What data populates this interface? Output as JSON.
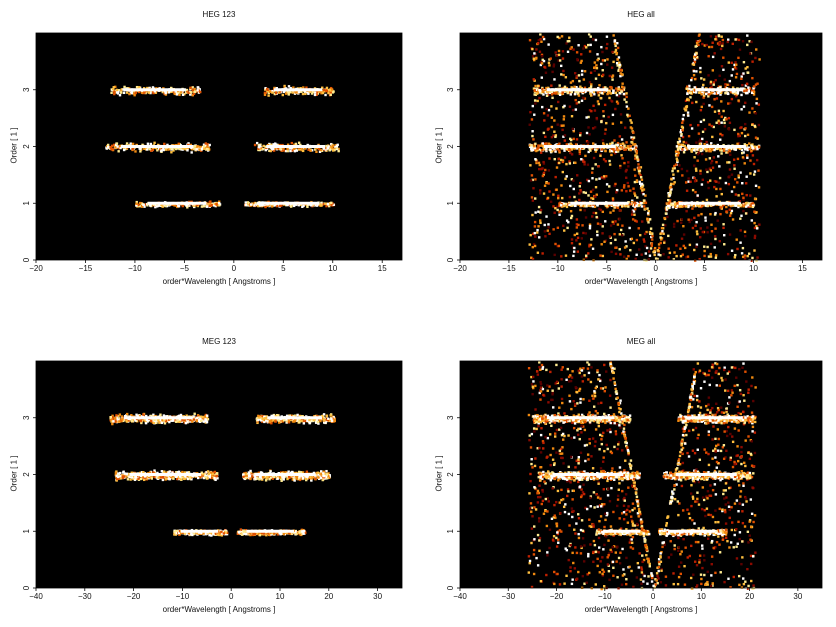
{
  "chart_data": [
    {
      "type": "heatmap",
      "title": "HEG 123",
      "xlabel": "order*Wavelength [ Angstroms ]",
      "ylabel": "Order [ 1 ]",
      "xlim": [
        -20,
        17
      ],
      "ylim": [
        0,
        4
      ],
      "xticks": [
        -20,
        -15,
        -10,
        -5,
        0,
        5,
        10,
        15
      ],
      "yticks": [
        0,
        1,
        2,
        3
      ],
      "colormap": "hot",
      "background": "#000000",
      "bands": [
        {
          "order": 3,
          "x_ranges": [
            [
              -12.5,
              -3.5
            ],
            [
              3,
              10
            ]
          ]
        },
        {
          "order": 2,
          "x_ranges": [
            [
              -13,
              -2.5
            ],
            [
              2,
              10.5
            ]
          ]
        },
        {
          "order": 1,
          "x_ranges": [
            [
              -10,
              -1.5
            ],
            [
              1,
              10
            ]
          ]
        }
      ],
      "fans": false
    },
    {
      "type": "heatmap",
      "title": "HEG all",
      "xlabel": "order*Wavelength [ Angstroms ]",
      "ylabel": "Order [ 1 ]",
      "xlim": [
        -20,
        17
      ],
      "ylim": [
        0,
        4
      ],
      "xticks": [
        -20,
        -15,
        -10,
        -5,
        0,
        5,
        10,
        15
      ],
      "yticks": [
        0,
        1,
        2,
        3
      ],
      "colormap": "hot",
      "background": "#000000",
      "bands": [
        {
          "order": 3,
          "x_ranges": [
            [
              -12.5,
              -3.5
            ],
            [
              3,
              10
            ]
          ]
        },
        {
          "order": 2,
          "x_ranges": [
            [
              -13,
              -2.5
            ],
            [
              2,
              10.5
            ]
          ]
        },
        {
          "order": 1,
          "x_ranges": [
            [
              -10,
              -1.5
            ],
            [
              1,
              10
            ]
          ]
        }
      ],
      "fans": true,
      "fan_x_extent": [
        -13,
        10.5
      ]
    },
    {
      "type": "heatmap",
      "title": "MEG 123",
      "xlabel": "order*Wavelength [ Angstroms ]",
      "ylabel": "Order [ 1 ]",
      "xlim": [
        -40,
        35
      ],
      "ylim": [
        0,
        4
      ],
      "xticks": [
        -40,
        -30,
        -20,
        -10,
        0,
        10,
        20,
        30
      ],
      "yticks": [
        0,
        1,
        2,
        3
      ],
      "colormap": "hot",
      "background": "#000000",
      "bands": [
        {
          "order": 3,
          "x_ranges": [
            [
              -25,
              -5
            ],
            [
              5,
              21
            ]
          ]
        },
        {
          "order": 2,
          "x_ranges": [
            [
              -24,
              -3
            ],
            [
              2,
              20
            ]
          ]
        },
        {
          "order": 1,
          "x_ranges": [
            [
              -12,
              -1
            ],
            [
              1,
              15
            ]
          ]
        }
      ],
      "fans": false
    },
    {
      "type": "heatmap",
      "title": "MEG all",
      "xlabel": "order*Wavelength [ Angstroms ]",
      "ylabel": "Order [ 1 ]",
      "xlim": [
        -40,
        35
      ],
      "ylim": [
        0,
        4
      ],
      "xticks": [
        -40,
        -30,
        -20,
        -10,
        0,
        10,
        20,
        30
      ],
      "yticks": [
        0,
        1,
        2,
        3
      ],
      "colormap": "hot",
      "background": "#000000",
      "bands": [
        {
          "order": 3,
          "x_ranges": [
            [
              -25,
              -5
            ],
            [
              5,
              21
            ]
          ]
        },
        {
          "order": 2,
          "x_ranges": [
            [
              -24,
              -3
            ],
            [
              2,
              20
            ]
          ]
        },
        {
          "order": 1,
          "x_ranges": [
            [
              -12,
              -1
            ],
            [
              1,
              15
            ]
          ]
        }
      ],
      "fans": true,
      "fan_x_extent": [
        -26,
        21
      ]
    }
  ]
}
